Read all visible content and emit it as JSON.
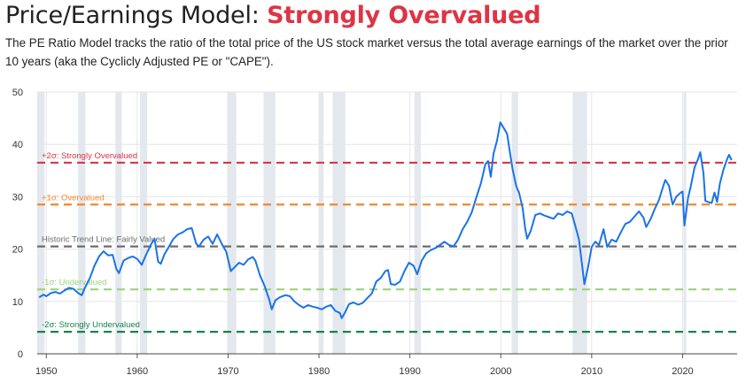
{
  "header": {
    "title_prefix": "Price/Earnings Model:",
    "title_status": "Strongly Overvalued",
    "description": "The PE Ratio Model tracks the ratio of the total price of the US stock market versus the total average earnings of the market over the prior 10 years (aka the Cyclicly Adjusted PE or \"CAPE\")."
  },
  "colors": {
    "status": "#dc3545",
    "series": "#1a73e8",
    "recession": "#e3e8ee",
    "plus2": "#dc3545",
    "plus1": "#f5862f",
    "trend": "#6c6c6c",
    "minus1": "#9bd37a",
    "minus2": "#17824c",
    "grid": "#e6e6e6"
  },
  "chart_data": {
    "type": "line",
    "xlim": [
      1949,
      2026
    ],
    "ylim": [
      0,
      50
    ],
    "x_ticks": [
      1950,
      1960,
      1970,
      1980,
      1990,
      2000,
      2010,
      2020
    ],
    "y_ticks": [
      0,
      10,
      20,
      30,
      40,
      50
    ],
    "grid": true,
    "recessions": [
      [
        1949.0,
        1949.8
      ],
      [
        1953.5,
        1954.3
      ],
      [
        1957.6,
        1958.3
      ],
      [
        1960.3,
        1961.1
      ],
      [
        1969.9,
        1970.9
      ],
      [
        1973.9,
        1975.2
      ],
      [
        1980.0,
        1980.5
      ],
      [
        1981.5,
        1982.9
      ],
      [
        1990.5,
        1991.2
      ],
      [
        2001.2,
        2001.9
      ],
      [
        2007.9,
        2009.5
      ],
      [
        2020.1,
        2020.4
      ]
    ],
    "reference_lines": [
      {
        "label": "+2σ: Strongly Overvalued",
        "value": 36.5,
        "color": "#dc3545"
      },
      {
        "label": "+1σ: Overvalued",
        "value": 28.5,
        "color": "#f5862f"
      },
      {
        "label": "Historic Trend Line: Fairly Valued",
        "value": 20.5,
        "color": "#6c6c6c"
      },
      {
        "label": "-1σ: Undervalued",
        "value": 12.3,
        "color": "#9bd37a"
      },
      {
        "label": "-2σ: Strongly Undervalued",
        "value": 4.2,
        "color": "#17824c"
      }
    ],
    "series": [
      {
        "values": [
          [
            1949.2,
            10.8
          ],
          [
            1949.7,
            11.3
          ],
          [
            1950.0,
            11.0
          ],
          [
            1950.5,
            11.6
          ],
          [
            1951.0,
            11.8
          ],
          [
            1951.5,
            11.5
          ],
          [
            1952.0,
            12.1
          ],
          [
            1952.5,
            12.6
          ],
          [
            1953.0,
            12.4
          ],
          [
            1953.5,
            11.6
          ],
          [
            1953.9,
            11.2
          ],
          [
            1954.3,
            12.8
          ],
          [
            1954.8,
            14.5
          ],
          [
            1955.3,
            16.8
          ],
          [
            1955.8,
            18.6
          ],
          [
            1956.3,
            19.6
          ],
          [
            1956.8,
            18.8
          ],
          [
            1957.3,
            18.9
          ],
          [
            1957.7,
            16.2
          ],
          [
            1958.0,
            15.4
          ],
          [
            1958.5,
            17.8
          ],
          [
            1959.0,
            18.3
          ],
          [
            1959.5,
            18.6
          ],
          [
            1960.0,
            18.1
          ],
          [
            1960.5,
            17.0
          ],
          [
            1961.0,
            19.0
          ],
          [
            1961.5,
            20.8
          ],
          [
            1961.9,
            22.0
          ],
          [
            1962.3,
            17.6
          ],
          [
            1962.6,
            17.2
          ],
          [
            1963.0,
            19.0
          ],
          [
            1963.5,
            20.5
          ],
          [
            1964.0,
            22.0
          ],
          [
            1964.5,
            22.8
          ],
          [
            1965.0,
            23.2
          ],
          [
            1965.5,
            23.8
          ],
          [
            1966.0,
            24.0
          ],
          [
            1966.5,
            21.0
          ],
          [
            1966.8,
            20.5
          ],
          [
            1967.3,
            21.8
          ],
          [
            1967.8,
            22.4
          ],
          [
            1968.3,
            21.0
          ],
          [
            1968.8,
            22.8
          ],
          [
            1969.3,
            21.0
          ],
          [
            1969.8,
            19.5
          ],
          [
            1970.3,
            15.8
          ],
          [
            1970.7,
            16.5
          ],
          [
            1971.2,
            17.4
          ],
          [
            1971.7,
            17.0
          ],
          [
            1972.2,
            18.0
          ],
          [
            1972.7,
            18.5
          ],
          [
            1973.0,
            17.8
          ],
          [
            1973.5,
            15.0
          ],
          [
            1974.0,
            13.0
          ],
          [
            1974.5,
            10.5
          ],
          [
            1974.8,
            8.5
          ],
          [
            1975.2,
            10.2
          ],
          [
            1975.7,
            10.8
          ],
          [
            1976.3,
            11.2
          ],
          [
            1976.8,
            11.0
          ],
          [
            1977.3,
            10.0
          ],
          [
            1977.8,
            9.3
          ],
          [
            1978.3,
            8.8
          ],
          [
            1978.8,
            9.3
          ],
          [
            1979.3,
            9.0
          ],
          [
            1979.8,
            8.8
          ],
          [
            1980.3,
            8.5
          ],
          [
            1980.8,
            9.0
          ],
          [
            1981.3,
            9.3
          ],
          [
            1981.8,
            8.2
          ],
          [
            1982.3,
            7.8
          ],
          [
            1982.5,
            6.8
          ],
          [
            1982.9,
            8.0
          ],
          [
            1983.3,
            9.5
          ],
          [
            1983.8,
            9.8
          ],
          [
            1984.3,
            9.4
          ],
          [
            1984.8,
            9.7
          ],
          [
            1985.3,
            10.6
          ],
          [
            1985.8,
            11.5
          ],
          [
            1986.3,
            13.8
          ],
          [
            1986.8,
            14.5
          ],
          [
            1987.3,
            15.8
          ],
          [
            1987.6,
            16.0
          ],
          [
            1987.9,
            13.3
          ],
          [
            1988.4,
            13.2
          ],
          [
            1988.9,
            13.8
          ],
          [
            1989.4,
            15.8
          ],
          [
            1989.9,
            17.4
          ],
          [
            1990.4,
            16.8
          ],
          [
            1990.8,
            15.2
          ],
          [
            1991.3,
            17.8
          ],
          [
            1991.8,
            19.2
          ],
          [
            1992.3,
            19.8
          ],
          [
            1992.8,
            20.2
          ],
          [
            1993.3,
            20.8
          ],
          [
            1993.8,
            21.4
          ],
          [
            1994.3,
            20.8
          ],
          [
            1994.8,
            20.5
          ],
          [
            1995.3,
            21.8
          ],
          [
            1995.8,
            23.8
          ],
          [
            1996.3,
            25.2
          ],
          [
            1996.8,
            27.0
          ],
          [
            1997.3,
            29.8
          ],
          [
            1997.8,
            32.5
          ],
          [
            1998.3,
            36.2
          ],
          [
            1998.6,
            36.8
          ],
          [
            1998.9,
            33.8
          ],
          [
            1999.2,
            38.2
          ],
          [
            1999.6,
            40.8
          ],
          [
            1999.95,
            44.2
          ],
          [
            2000.3,
            43.2
          ],
          [
            2000.7,
            42.0
          ],
          [
            2001.0,
            38.5
          ],
          [
            2001.3,
            35.2
          ],
          [
            2001.7,
            32.0
          ],
          [
            2002.0,
            30.8
          ],
          [
            2002.4,
            27.8
          ],
          [
            2002.7,
            23.8
          ],
          [
            2002.9,
            22.0
          ],
          [
            2003.3,
            23.5
          ],
          [
            2003.8,
            26.5
          ],
          [
            2004.3,
            26.8
          ],
          [
            2004.8,
            26.4
          ],
          [
            2005.3,
            26.1
          ],
          [
            2005.8,
            25.8
          ],
          [
            2006.3,
            26.8
          ],
          [
            2006.8,
            26.5
          ],
          [
            2007.3,
            27.2
          ],
          [
            2007.8,
            26.8
          ],
          [
            2008.2,
            24.4
          ],
          [
            2008.6,
            21.8
          ],
          [
            2008.9,
            17.5
          ],
          [
            2009.2,
            13.3
          ],
          [
            2009.6,
            16.5
          ],
          [
            2010.0,
            20.4
          ],
          [
            2010.4,
            21.4
          ],
          [
            2010.8,
            20.8
          ],
          [
            2011.3,
            23.8
          ],
          [
            2011.7,
            20.4
          ],
          [
            2012.2,
            21.8
          ],
          [
            2012.7,
            21.4
          ],
          [
            2013.2,
            23.2
          ],
          [
            2013.7,
            24.8
          ],
          [
            2014.2,
            25.2
          ],
          [
            2014.7,
            26.2
          ],
          [
            2015.2,
            27.2
          ],
          [
            2015.7,
            26.0
          ],
          [
            2016.0,
            24.2
          ],
          [
            2016.5,
            25.8
          ],
          [
            2016.9,
            27.5
          ],
          [
            2017.4,
            29.4
          ],
          [
            2017.9,
            32.2
          ],
          [
            2018.1,
            33.2
          ],
          [
            2018.5,
            32.1
          ],
          [
            2018.9,
            28.5
          ],
          [
            2019.3,
            30.0
          ],
          [
            2019.8,
            30.8
          ],
          [
            2020.0,
            31.0
          ],
          [
            2020.2,
            24.5
          ],
          [
            2020.6,
            29.8
          ],
          [
            2020.9,
            32.0
          ],
          [
            2021.3,
            35.5
          ],
          [
            2021.7,
            37.2
          ],
          [
            2021.95,
            38.5
          ],
          [
            2022.3,
            34.5
          ],
          [
            2022.5,
            29.2
          ],
          [
            2022.8,
            29.0
          ],
          [
            2023.2,
            28.8
          ],
          [
            2023.5,
            30.8
          ],
          [
            2023.8,
            29.0
          ],
          [
            2024.1,
            32.5
          ],
          [
            2024.5,
            35.2
          ],
          [
            2024.9,
            37.2
          ],
          [
            2025.1,
            38.0
          ],
          [
            2025.4,
            37.0
          ]
        ]
      }
    ]
  }
}
